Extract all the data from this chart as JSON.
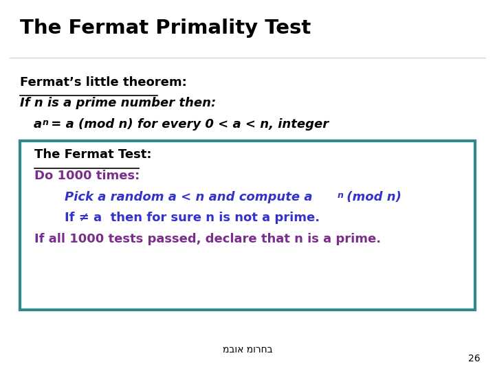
{
  "title": "The Fermat Primality Test",
  "bg_color": "#ffffff",
  "box_edge_color": "#2E8B8B",
  "footer_text": "מבוא מורחב",
  "page_number": "26",
  "text_color_black": "#000000",
  "text_color_purple": "#7B2D8B",
  "text_color_blue": "#3333CC",
  "line1_label": "Fermat’s little theorem:",
  "line2": "If n is a prime number then:",
  "box_line1": "The Fermat Test:",
  "box_line2": "Do 1000 times:",
  "box_line3_main": "Pick a random a < n and compute a",
  "box_line3_sup": "n",
  "box_line3_tail": " (mod n)",
  "box_line4": "If ≠ a  then for sure n is not a prime.",
  "box_line5": "If all 1000 tests passed, declare that n is a prime."
}
